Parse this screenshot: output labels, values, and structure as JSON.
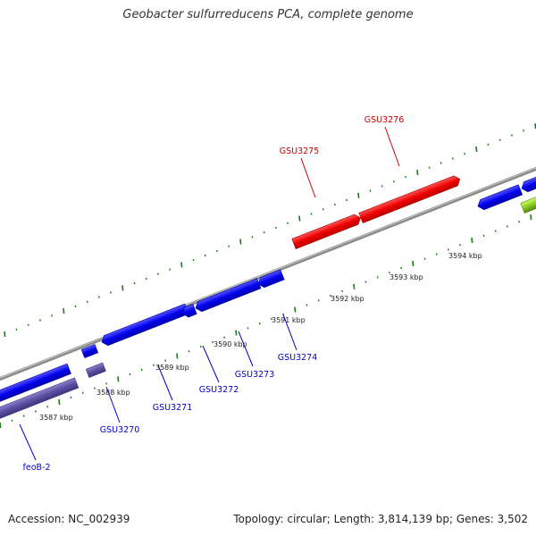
{
  "title": "Geobacter sulfurreducens PCA, complete genome",
  "footer": {
    "accession": "Accession: NC_002939",
    "summary": "Topology: circular; Length: 3,814,139 bp; Genes: 3,502"
  },
  "colors": {
    "forward_gene": "#dd0000",
    "reverse_gene": "#0000dd",
    "pseudo_gene": "#5a4fa0",
    "green_feature": "#99dd33",
    "backbone": "#8a8a8a",
    "ticks": "#1a7a1a",
    "forward_label": "#cc0000",
    "reverse_label": "#0000cc"
  },
  "scale_labels": [
    "3587 kbp",
    "3588 kbp",
    "3589 kbp",
    "3590 kbp",
    "3591 kbp",
    "3592 kbp",
    "3593 kbp",
    "3594 kbp"
  ],
  "genes_forward": [
    "GSU3275",
    "GSU3276"
  ],
  "genes_reverse": [
    "feoB-2",
    "GSU3270",
    "GSU3271",
    "GSU3272",
    "GSU3273",
    "GSU3274"
  ]
}
